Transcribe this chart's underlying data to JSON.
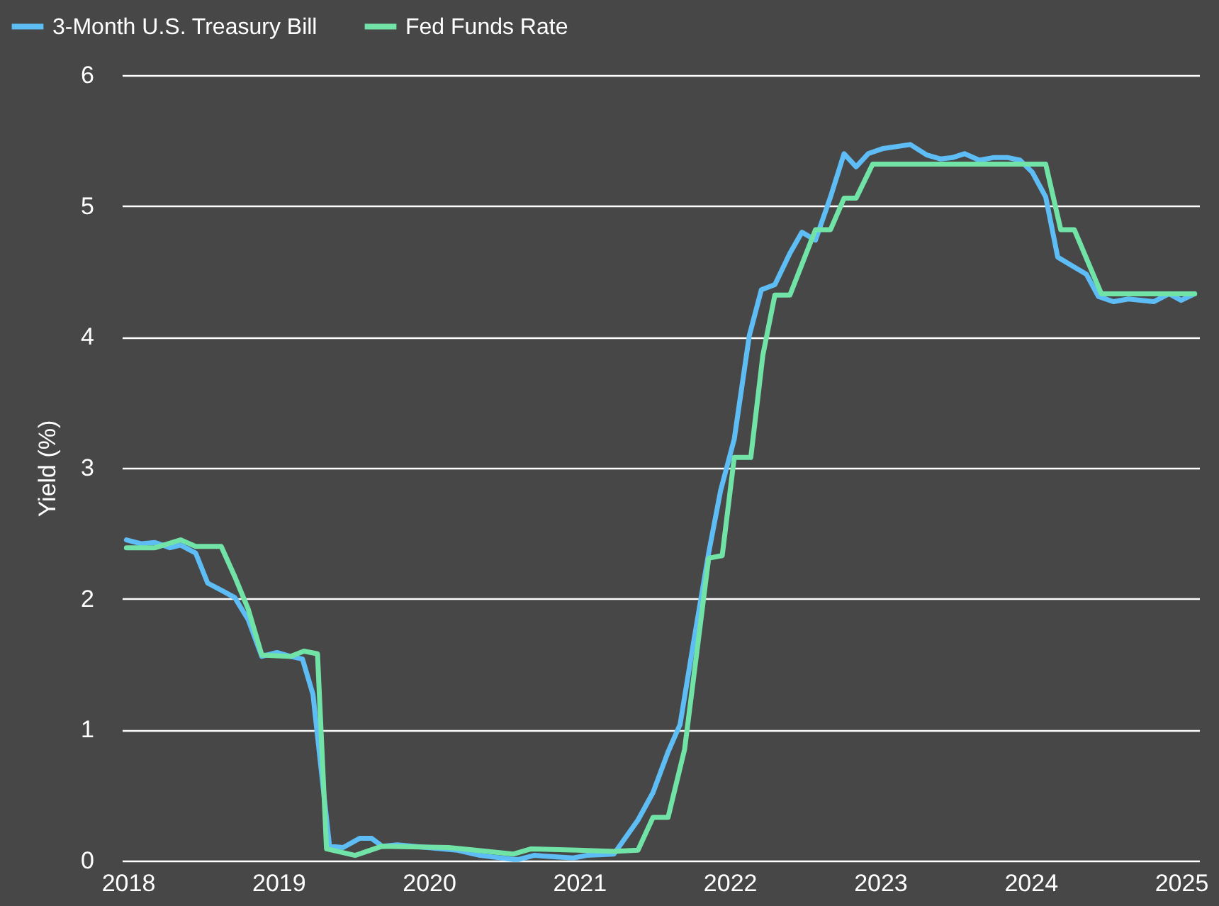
{
  "chart_data": {
    "type": "line",
    "ylabel": "Yield (%)",
    "xlim": [
      2017.96,
      2025.12
    ],
    "xticks": [
      2018,
      2019,
      2020,
      2021,
      2022,
      2023,
      2024,
      2025
    ],
    "ylim": [
      0,
      6
    ],
    "yticks": [
      0,
      1,
      2,
      3,
      4,
      5,
      6
    ],
    "grid": "y",
    "legend": "top left",
    "series": [
      {
        "name": "3-Month U.S. Treasury Bill",
        "color": "#5dbdf4",
        "x": [
          2017.99,
          2018.09,
          2018.18,
          2018.28,
          2018.35,
          2018.45,
          2018.53,
          2018.63,
          2018.71,
          2018.8,
          2018.89,
          2018.99,
          2019.08,
          2019.16,
          2019.23,
          2019.34,
          2019.43,
          2019.54,
          2019.62,
          2019.69,
          2019.79,
          2020.19,
          2020.34,
          2020.56,
          2020.6,
          2020.7,
          2020.96,
          2021.05,
          2021.23,
          2021.39,
          2021.49,
          2021.59,
          2021.67,
          2021.76,
          2021.86,
          2021.94,
          2022.03,
          2022.13,
          2022.21,
          2022.3,
          2022.4,
          2022.48,
          2022.57,
          2022.67,
          2022.76,
          2022.84,
          2022.92,
          2023.02,
          2023.2,
          2023.31,
          2023.4,
          2023.48,
          2023.56,
          2023.66,
          2023.75,
          2023.85,
          2023.93,
          2024.01,
          2024.1,
          2024.18,
          2024.28,
          2024.37,
          2024.45,
          2024.55,
          2024.65,
          2024.82,
          2024.92,
          2025.0,
          2025.09
        ],
        "values": [
          2.45,
          2.42,
          2.43,
          2.39,
          2.41,
          2.35,
          2.12,
          2.06,
          2.01,
          1.84,
          1.56,
          1.59,
          1.56,
          1.54,
          1.27,
          0.11,
          0.1,
          0.17,
          0.17,
          0.11,
          0.12,
          0.08,
          0.04,
          0.01,
          0.01,
          0.04,
          0.02,
          0.04,
          0.05,
          0.31,
          0.52,
          0.83,
          1.04,
          1.67,
          2.35,
          2.83,
          3.22,
          4.01,
          4.36,
          4.4,
          4.64,
          4.8,
          4.74,
          5.07,
          5.4,
          5.3,
          5.4,
          5.44,
          5.47,
          5.39,
          5.36,
          5.37,
          5.4,
          5.35,
          5.37,
          5.37,
          5.35,
          5.26,
          5.07,
          4.61,
          4.54,
          4.48,
          4.31,
          4.27,
          4.29,
          4.27,
          4.33,
          4.28,
          4.33
        ]
      },
      {
        "name": "Fed Funds Rate",
        "color": "#72e3a7",
        "x": [
          2017.99,
          2018.18,
          2018.35,
          2018.45,
          2018.62,
          2018.71,
          2018.8,
          2018.89,
          2019.08,
          2019.17,
          2019.26,
          2019.32,
          2019.51,
          2019.69,
          2020.13,
          2020.31,
          2020.56,
          2020.68,
          2020.99,
          2021.23,
          2021.39,
          2021.49,
          2021.59,
          2021.7,
          2021.86,
          2021.95,
          2022.03,
          2022.14,
          2022.22,
          2022.3,
          2022.4,
          2022.57,
          2022.67,
          2022.76,
          2022.84,
          2022.95,
          2024.1,
          2024.2,
          2024.29,
          2024.47,
          2025.09
        ],
        "values": [
          2.39,
          2.39,
          2.45,
          2.4,
          2.4,
          2.17,
          1.92,
          1.57,
          1.56,
          1.6,
          1.58,
          0.09,
          0.04,
          0.11,
          0.1,
          0.08,
          0.05,
          0.09,
          0.08,
          0.07,
          0.08,
          0.33,
          0.33,
          0.85,
          2.31,
          2.33,
          3.08,
          3.08,
          3.86,
          4.32,
          4.32,
          4.82,
          4.82,
          5.06,
          5.06,
          5.32,
          5.32,
          4.82,
          4.82,
          4.33,
          4.33
        ]
      }
    ]
  }
}
